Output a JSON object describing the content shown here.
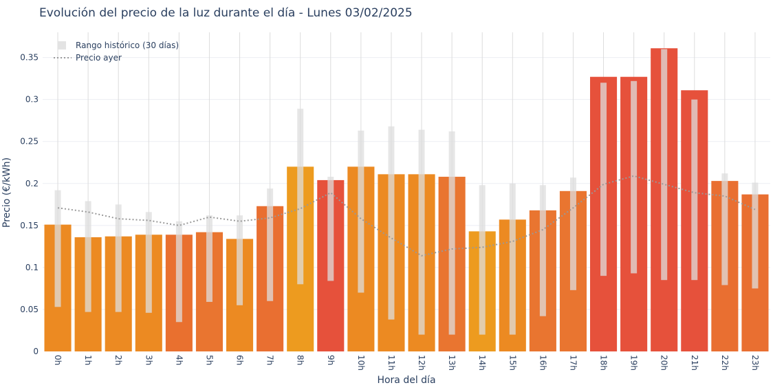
{
  "chart_data": {
    "type": "bar",
    "title": "Evolución del precio de la luz durante el día - Lunes 03/02/2025",
    "xlabel": "Hora del día",
    "ylabel": "Precio (€/kWh)",
    "ylim": [
      0,
      0.38
    ],
    "yticks": [
      0,
      0.05,
      0.1,
      0.15,
      0.2,
      0.25,
      0.3,
      0.35
    ],
    "ytick_labels": [
      "0",
      "0.05",
      "0.1",
      "0.15",
      "0.2",
      "0.25",
      "0.3",
      "0.35"
    ],
    "grid": true,
    "legend_position": "top-left",
    "categories": [
      "0h",
      "1h",
      "2h",
      "3h",
      "4h",
      "5h",
      "6h",
      "7h",
      "8h",
      "9h",
      "10h",
      "11h",
      "12h",
      "13h",
      "14h",
      "15h",
      "16h",
      "17h",
      "18h",
      "19h",
      "20h",
      "21h",
      "22h",
      "23h"
    ],
    "series": [
      {
        "type": "bar",
        "values": [
          0.151,
          0.136,
          0.137,
          0.139,
          0.139,
          0.142,
          0.134,
          0.173,
          0.22,
          0.204,
          0.22,
          0.211,
          0.211,
          0.208,
          0.143,
          0.157,
          0.168,
          0.191,
          0.327,
          0.327,
          0.361,
          0.311,
          0.203,
          0.187
        ],
        "colors": [
          "#ec8a22",
          "#ec8a22",
          "#ec8a22",
          "#ec8a22",
          "#e9702f",
          "#e97530",
          "#ec8a22",
          "#e96f31",
          "#ed9b1f",
          "#e6513b",
          "#ec8a22",
          "#ec8a22",
          "#ec8a22",
          "#e97530",
          "#ed9b1f",
          "#ec8a22",
          "#e97530",
          "#e97530",
          "#e6513b",
          "#e6513b",
          "#e6513b",
          "#e6513b",
          "#e96f31",
          "#e96f31"
        ]
      },
      {
        "name": "Rango histórico (30 días)",
        "type": "range",
        "low": [
          0.053,
          0.047,
          0.047,
          0.046,
          0.035,
          0.059,
          0.055,
          0.06,
          0.08,
          0.084,
          0.07,
          0.038,
          0.02,
          0.02,
          0.02,
          0.02,
          0.042,
          0.073,
          0.09,
          0.093,
          0.085,
          0.085,
          0.079,
          0.075
        ],
        "high": [
          0.192,
          0.179,
          0.175,
          0.166,
          0.155,
          0.162,
          0.162,
          0.194,
          0.289,
          0.208,
          0.263,
          0.268,
          0.264,
          0.262,
          0.198,
          0.2,
          0.198,
          0.207,
          0.32,
          0.322,
          0.36,
          0.3,
          0.212,
          0.201
        ],
        "color": "#e3e3e3"
      },
      {
        "name": "Precio ayer",
        "type": "line",
        "values": [
          0.171,
          0.166,
          0.158,
          0.156,
          0.15,
          0.16,
          0.155,
          0.159,
          0.17,
          0.189,
          0.158,
          0.135,
          0.114,
          0.122,
          0.124,
          0.131,
          0.145,
          0.171,
          0.199,
          0.209,
          0.199,
          0.189,
          0.185,
          0.169
        ],
        "color": "#999999"
      }
    ]
  }
}
